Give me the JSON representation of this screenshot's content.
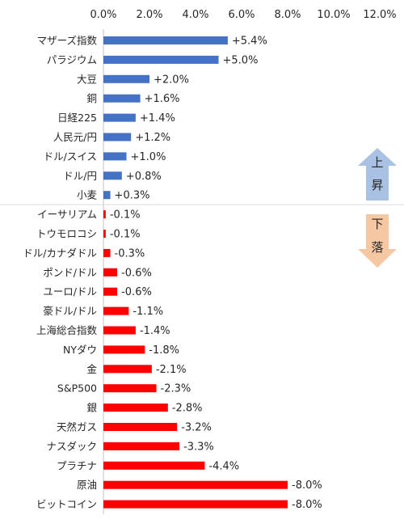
{
  "chart_data": {
    "type": "bar",
    "orientation": "horizontal",
    "categories": [
      "マザーズ指数",
      "パラジウム",
      "大豆",
      "銅",
      "日経225",
      "人民元/円",
      "ドル/スイス",
      "ドル/円",
      "小麦",
      "イーサリアム",
      "トウモロコシ",
      "ドル/カナダドル",
      "ポンド/ドル",
      "ユーロ/ドル",
      "豪ドル/ドル",
      "上海総合指数",
      "NYダウ",
      "金",
      "S&P500",
      "銀",
      "天然ガス",
      "ナスダック",
      "プラチナ",
      "原油",
      "ビットコイン"
    ],
    "values": [
      5.4,
      5.0,
      2.0,
      1.6,
      1.4,
      1.2,
      1.0,
      0.8,
      0.3,
      -0.1,
      -0.1,
      -0.3,
      -0.6,
      -0.6,
      -1.1,
      -1.4,
      -1.8,
      -2.1,
      -2.3,
      -2.8,
      -3.2,
      -3.3,
      -4.4,
      -8.0,
      -8.0
    ],
    "data_labels": [
      "+5.4%",
      "+5.0%",
      "+2.0%",
      "+1.6%",
      "+1.4%",
      "+1.2%",
      "+1.0%",
      "+0.8%",
      "+0.3%",
      "-0.1%",
      "-0.1%",
      "-0.3%",
      "-0.6%",
      "-0.6%",
      "-1.1%",
      "-1.4%",
      "-1.8%",
      "-2.1%",
      "-2.3%",
      "-2.8%",
      "-3.2%",
      "-3.3%",
      "-4.4%",
      "-8.0%",
      "-8.0%"
    ],
    "xlim": [
      0,
      12
    ],
    "x_ticks": [
      "0.0%",
      "2.0%",
      "4.0%",
      "6.0%",
      "8.0%",
      "10.0%",
      "12.0%"
    ],
    "bar_length_basis": "absolute value",
    "colors": {
      "positive": "#4472C4",
      "negative": "#FF0000"
    },
    "annotations": {
      "up": {
        "chars": [
          "上",
          "昇"
        ],
        "color": "#A9C2E3"
      },
      "down": {
        "chars": [
          "下",
          "落"
        ],
        "color": "#F6C7A3"
      }
    },
    "divider_after_index": 8,
    "grid": false,
    "legend": "none"
  }
}
